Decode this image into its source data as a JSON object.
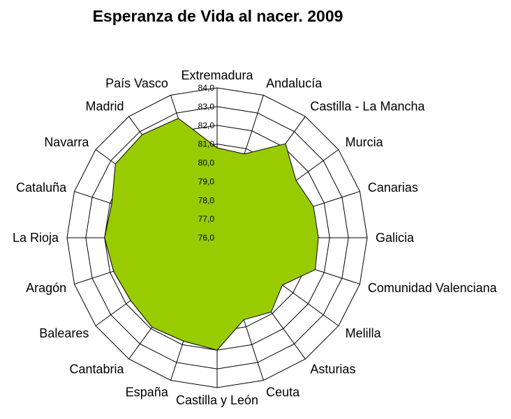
{
  "chart_data": {
    "type": "radar",
    "title": "Esperanza de Vida al nacer. 2009",
    "categories": [
      "Extremadura",
      "Andalucía",
      "Castilla - La Mancha",
      "Murcia",
      "Canarias",
      "Galicia",
      "Comunidad Valenciana",
      "Melilla",
      "Asturias",
      "Ceuta",
      "Castilla y León",
      "España",
      "Cantabria",
      "Baleares",
      "Aragón",
      "La Rioja",
      "Cataluña",
      "Navarra",
      "Madrid",
      "País Vasco"
    ],
    "values": [
      80.8,
      80.7,
      82.2,
      81.2,
      81.4,
      81.4,
      81.5,
      80.3,
      80.9,
      80.6,
      82.0,
      81.8,
      81.9,
      81.7,
      81.8,
      82.0,
      81.9,
      82.7,
      82.8,
      82.7
    ],
    "ticks": [
      "76,0",
      "77,0",
      "78,0",
      "79,0",
      "80,0",
      "81,0",
      "82,0",
      "83,0",
      "84,0"
    ],
    "rmin": 76,
    "rmax": 84,
    "colors": {
      "fill": "#99cc00",
      "grid": "#000000"
    }
  }
}
